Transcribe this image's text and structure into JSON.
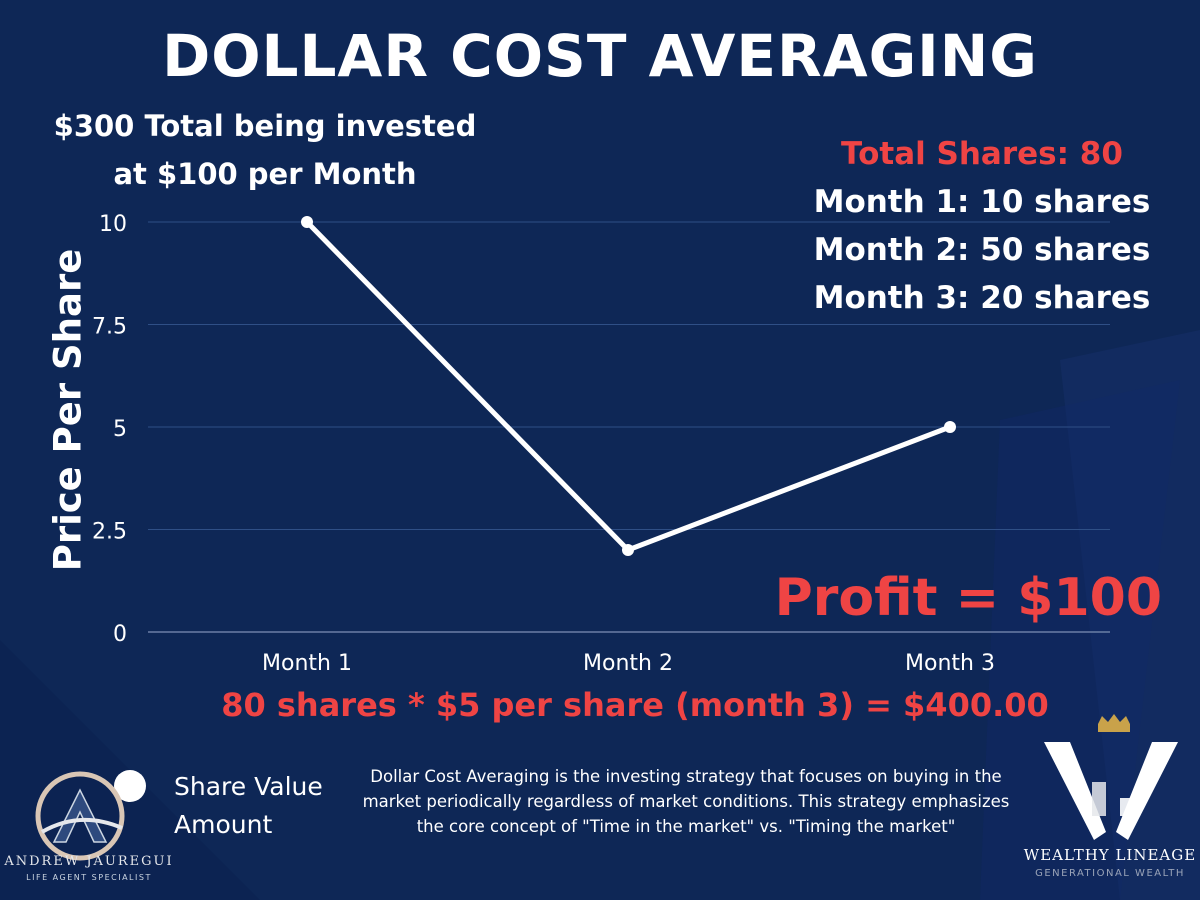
{
  "colors": {
    "background": "#0e2756",
    "line": "#ffffff",
    "accent_red": "#ef4444",
    "gridline": "#2f4f86"
  },
  "chart_data": {
    "type": "line",
    "title": "DOLLAR COST AVERAGING",
    "subtitle_lines": [
      "$300 Total being invested",
      "at $100 per Month"
    ],
    "xlabel": "",
    "ylabel": "Price Per Share",
    "categories": [
      "Month 1",
      "Month 2",
      "Month 3"
    ],
    "series": [
      {
        "name": "Share Value Amount",
        "values": [
          10,
          2,
          5
        ],
        "color": "#ffffff"
      }
    ],
    "ylim": [
      0,
      10
    ],
    "yticks": [
      "0",
      "2.5",
      "5",
      "7.5",
      "10"
    ],
    "ytick_values": [
      0,
      2.5,
      5,
      7.5,
      10
    ],
    "grid": true,
    "legend_placement": "bottom-left",
    "annotations": {
      "total_shares": "Total Shares: 80",
      "month_shares": [
        "Month 1: 10 shares",
        "Month 2: 50 shares",
        "Month 3: 20 shares"
      ],
      "profit": "Profit = $100",
      "equation": "80 shares * $5 per share (month 3) = $400.00"
    }
  },
  "legend": {
    "line1": "Share Value",
    "line2": "Amount"
  },
  "description": {
    "line1": "Dollar Cost Averaging is the investing strategy that focuses on buying in the",
    "line2": "market periodically regardless of market conditions. This strategy emphasizes",
    "line3": "the core concept of \"Time in the market\" vs. \"Timing the market\""
  },
  "logos": {
    "left_name": "ANDREW JAUREGUI",
    "left_sub": "LIFE AGENT SPECIALIST",
    "right_name": "WEALTHY LINEAGE",
    "right_sub": "GENERATIONAL WEALTH"
  }
}
